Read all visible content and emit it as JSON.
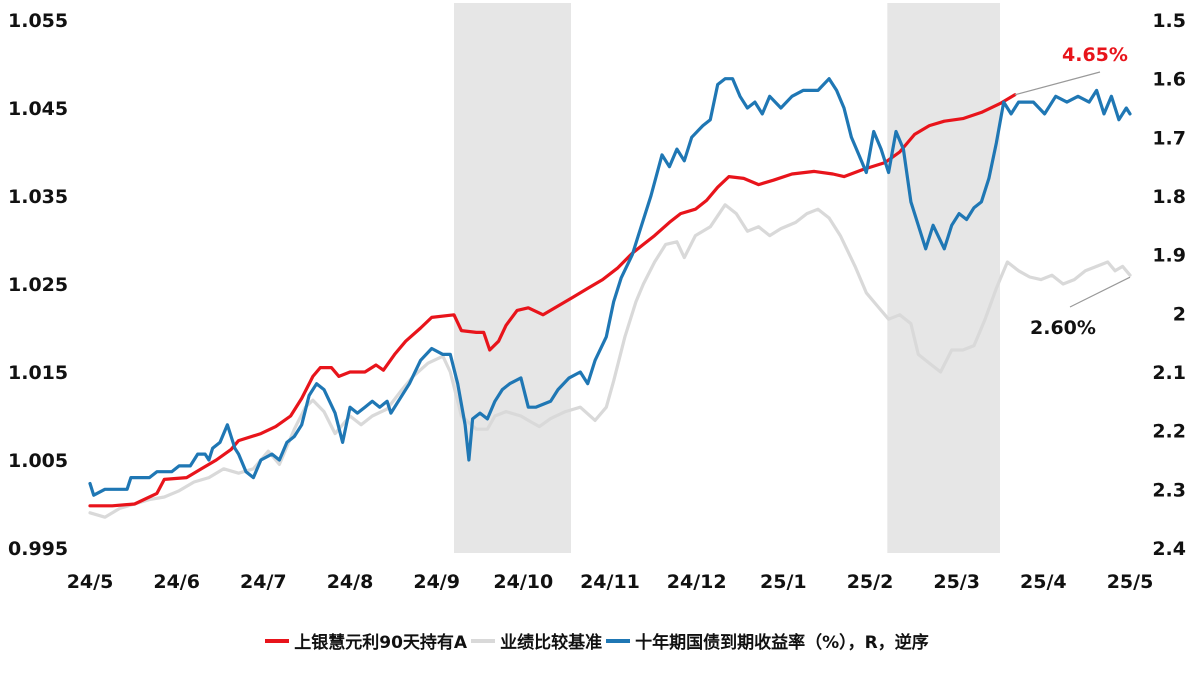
{
  "chart_data": {
    "type": "line",
    "x_categories": [
      "24/5",
      "24/6",
      "24/7",
      "24/8",
      "24/9",
      "24/10",
      "24/11",
      "24/12",
      "25/1",
      "25/2",
      "25/3",
      "25/4",
      "25/5"
    ],
    "y_left": {
      "ticks": [
        "1.055",
        "1.045",
        "1.035",
        "1.025",
        "1.015",
        "1.005",
        "0.995"
      ],
      "range": [
        0.995,
        1.055
      ]
    },
    "y_right": {
      "ticks": [
        "1.5",
        "1.6",
        "1.7",
        "1.8",
        "1.9",
        "2",
        "2.1",
        "2.2",
        "2.3",
        "2.4"
      ],
      "range": [
        1.5,
        2.4
      ],
      "reversed": true
    },
    "shaded_periods": [
      {
        "from": 4.2,
        "to": 5.55
      },
      {
        "from": 9.2,
        "to": 10.5
      }
    ],
    "series": [
      {
        "name": "上银慧元利90天持有A",
        "axis": "left",
        "color": "#e8141b",
        "points": [
          [
            0,
            0.9998
          ],
          [
            0.3,
            0.9998
          ],
          [
            0.6,
            1.0
          ],
          [
            0.9,
            1.0012
          ],
          [
            1.0,
            1.0028
          ],
          [
            1.3,
            1.003
          ],
          [
            1.5,
            1.004
          ],
          [
            1.7,
            1.005
          ],
          [
            1.9,
            1.0062
          ],
          [
            2.0,
            1.0072
          ],
          [
            2.3,
            1.008
          ],
          [
            2.5,
            1.0088
          ],
          [
            2.7,
            1.01
          ],
          [
            2.85,
            1.012
          ],
          [
            3.0,
            1.0145
          ],
          [
            3.1,
            1.0155
          ],
          [
            3.25,
            1.0155
          ],
          [
            3.35,
            1.0145
          ],
          [
            3.5,
            1.015
          ],
          [
            3.7,
            1.015
          ],
          [
            3.85,
            1.0158
          ],
          [
            3.95,
            1.0152
          ],
          [
            4.1,
            1.017
          ],
          [
            4.25,
            1.0185
          ],
          [
            4.45,
            1.02
          ],
          [
            4.6,
            1.0212
          ],
          [
            4.9,
            1.0215
          ],
          [
            5.0,
            1.0197
          ],
          [
            5.2,
            1.0195
          ],
          [
            5.3,
            1.0195
          ],
          [
            5.38,
            1.0175
          ],
          [
            5.5,
            1.0185
          ],
          [
            5.6,
            1.0203
          ],
          [
            5.75,
            1.022
          ],
          [
            5.9,
            1.0223
          ],
          [
            6.1,
            1.0215
          ],
          [
            6.3,
            1.0225
          ],
          [
            6.5,
            1.0235
          ],
          [
            6.7,
            1.0245
          ],
          [
            6.9,
            1.0255
          ],
          [
            7.1,
            1.0268
          ],
          [
            7.3,
            1.0285
          ],
          [
            7.45,
            1.0295
          ],
          [
            7.6,
            1.0305
          ],
          [
            7.8,
            1.032
          ],
          [
            7.95,
            1.033
          ],
          [
            8.15,
            1.0335
          ],
          [
            8.3,
            1.0345
          ],
          [
            8.45,
            1.036
          ],
          [
            8.6,
            1.0372
          ],
          [
            8.8,
            1.037
          ],
          [
            9.0,
            1.0363
          ],
          [
            9.2,
            1.0368
          ],
          [
            9.45,
            1.0375
          ],
          [
            9.75,
            1.0378
          ],
          [
            10.0,
            1.0375
          ],
          [
            10.15,
            1.0372
          ],
          [
            10.4,
            1.038
          ],
          [
            10.7,
            1.0388
          ],
          [
            10.9,
            1.04
          ],
          [
            11.1,
            1.042
          ],
          [
            11.3,
            1.043
          ],
          [
            11.5,
            1.0435
          ],
          [
            11.75,
            1.0438
          ],
          [
            12.0,
            1.0445
          ],
          [
            12.25,
            1.0455
          ],
          [
            12.45,
            1.0465
          ]
        ]
      },
      {
        "name": "业绩比较基准",
        "axis": "left",
        "color": "#d9d9d9",
        "points": [
          [
            0,
            0.999
          ],
          [
            0.2,
            0.9985
          ],
          [
            0.4,
            0.9995
          ],
          [
            0.6,
            1.0
          ],
          [
            0.8,
            1.0005
          ],
          [
            1.0,
            1.0008
          ],
          [
            1.2,
            1.0015
          ],
          [
            1.4,
            1.0025
          ],
          [
            1.6,
            1.003
          ],
          [
            1.8,
            1.004
          ],
          [
            2.0,
            1.0035
          ],
          [
            2.2,
            1.004
          ],
          [
            2.4,
            1.006
          ],
          [
            2.55,
            1.0045
          ],
          [
            2.75,
            1.0085
          ],
          [
            2.9,
            1.011
          ],
          [
            3.0,
            1.0118
          ],
          [
            3.15,
            1.0105
          ],
          [
            3.3,
            1.008
          ],
          [
            3.5,
            1.01
          ],
          [
            3.65,
            1.009
          ],
          [
            3.8,
            1.01
          ],
          [
            4.0,
            1.0108
          ],
          [
            4.2,
            1.013
          ],
          [
            4.35,
            1.0145
          ],
          [
            4.55,
            1.016
          ],
          [
            4.75,
            1.0168
          ],
          [
            4.85,
            1.015
          ],
          [
            5.0,
            1.01
          ],
          [
            5.2,
            1.0085
          ],
          [
            5.35,
            1.0085
          ],
          [
            5.45,
            1.01
          ],
          [
            5.6,
            1.0105
          ],
          [
            5.8,
            1.01
          ],
          [
            5.9,
            1.0095
          ],
          [
            6.05,
            1.0088
          ],
          [
            6.2,
            1.0097
          ],
          [
            6.4,
            1.0105
          ],
          [
            6.6,
            1.011
          ],
          [
            6.8,
            1.0095
          ],
          [
            6.95,
            1.011
          ],
          [
            7.05,
            1.014
          ],
          [
            7.2,
            1.019
          ],
          [
            7.35,
            1.023
          ],
          [
            7.45,
            1.025
          ],
          [
            7.6,
            1.0275
          ],
          [
            7.75,
            1.0295
          ],
          [
            7.9,
            1.0298
          ],
          [
            8.0,
            1.028
          ],
          [
            8.15,
            1.0305
          ],
          [
            8.35,
            1.0315
          ],
          [
            8.55,
            1.034
          ],
          [
            8.7,
            1.033
          ],
          [
            8.85,
            1.031
          ],
          [
            9.0,
            1.0315
          ],
          [
            9.15,
            1.0305
          ],
          [
            9.3,
            1.0313
          ],
          [
            9.5,
            1.032
          ],
          [
            9.65,
            1.033
          ],
          [
            9.8,
            1.0335
          ],
          [
            9.95,
            1.0325
          ],
          [
            10.1,
            1.0305
          ],
          [
            10.3,
            1.027
          ],
          [
            10.45,
            1.024
          ],
          [
            10.6,
            1.0225
          ],
          [
            10.75,
            1.021
          ],
          [
            10.9,
            1.0215
          ],
          [
            11.05,
            1.0205
          ],
          [
            11.15,
            1.017
          ],
          [
            11.3,
            1.016
          ],
          [
            11.45,
            1.015
          ],
          [
            11.6,
            1.0175
          ],
          [
            11.75,
            1.0175
          ],
          [
            11.9,
            1.018
          ],
          [
            12.05,
            1.021
          ],
          [
            12.2,
            1.0245
          ],
          [
            12.35,
            1.0275
          ],
          [
            12.5,
            1.0265
          ],
          [
            12.65,
            1.0258
          ],
          [
            12.8,
            1.0255
          ],
          [
            12.95,
            1.026
          ],
          [
            13.1,
            1.025
          ],
          [
            13.25,
            1.0255
          ],
          [
            13.4,
            1.0265
          ],
          [
            13.55,
            1.027
          ],
          [
            13.7,
            1.0275
          ],
          [
            13.8,
            1.0265
          ],
          [
            13.9,
            1.027
          ],
          [
            14.0,
            1.026
          ]
        ]
      },
      {
        "name": "十年期国债到期收益率（%），R，逆序",
        "axis": "right",
        "color": "#1f77b4",
        "points": [
          [
            0,
            2.29
          ],
          [
            0.05,
            2.31
          ],
          [
            0.2,
            2.3
          ],
          [
            0.5,
            2.3
          ],
          [
            0.55,
            2.28
          ],
          [
            0.8,
            2.28
          ],
          [
            0.9,
            2.27
          ],
          [
            1.1,
            2.27
          ],
          [
            1.2,
            2.26
          ],
          [
            1.35,
            2.26
          ],
          [
            1.45,
            2.24
          ],
          [
            1.55,
            2.24
          ],
          [
            1.6,
            2.25
          ],
          [
            1.65,
            2.23
          ],
          [
            1.75,
            2.22
          ],
          [
            1.85,
            2.19
          ],
          [
            1.95,
            2.23
          ],
          [
            2.0,
            2.24
          ],
          [
            2.1,
            2.27
          ],
          [
            2.2,
            2.28
          ],
          [
            2.3,
            2.25
          ],
          [
            2.45,
            2.24
          ],
          [
            2.55,
            2.25
          ],
          [
            2.65,
            2.22
          ],
          [
            2.75,
            2.21
          ],
          [
            2.85,
            2.19
          ],
          [
            2.95,
            2.14
          ],
          [
            3.05,
            2.12
          ],
          [
            3.15,
            2.13
          ],
          [
            3.3,
            2.17
          ],
          [
            3.4,
            2.22
          ],
          [
            3.5,
            2.16
          ],
          [
            3.6,
            2.17
          ],
          [
            3.7,
            2.16
          ],
          [
            3.8,
            2.15
          ],
          [
            3.9,
            2.16
          ],
          [
            4.0,
            2.15
          ],
          [
            4.05,
            2.17
          ],
          [
            4.15,
            2.15
          ],
          [
            4.3,
            2.12
          ],
          [
            4.45,
            2.08
          ],
          [
            4.6,
            2.06
          ],
          [
            4.75,
            2.07
          ],
          [
            4.85,
            2.07
          ],
          [
            4.95,
            2.12
          ],
          [
            5.05,
            2.19
          ],
          [
            5.1,
            2.25
          ],
          [
            5.15,
            2.18
          ],
          [
            5.25,
            2.17
          ],
          [
            5.35,
            2.18
          ],
          [
            5.45,
            2.15
          ],
          [
            5.55,
            2.13
          ],
          [
            5.65,
            2.12
          ],
          [
            5.8,
            2.11
          ],
          [
            5.9,
            2.16
          ],
          [
            6.0,
            2.16
          ],
          [
            6.2,
            2.15
          ],
          [
            6.3,
            2.13
          ],
          [
            6.45,
            2.11
          ],
          [
            6.6,
            2.1
          ],
          [
            6.7,
            2.12
          ],
          [
            6.8,
            2.08
          ],
          [
            6.95,
            2.04
          ],
          [
            7.05,
            1.98
          ],
          [
            7.15,
            1.94
          ],
          [
            7.3,
            1.9
          ],
          [
            7.4,
            1.86
          ],
          [
            7.55,
            1.8
          ],
          [
            7.7,
            1.73
          ],
          [
            7.8,
            1.75
          ],
          [
            7.9,
            1.72
          ],
          [
            8.0,
            1.74
          ],
          [
            8.1,
            1.7
          ],
          [
            8.25,
            1.68
          ],
          [
            8.35,
            1.67
          ],
          [
            8.45,
            1.61
          ],
          [
            8.55,
            1.6
          ],
          [
            8.65,
            1.6
          ],
          [
            8.75,
            1.63
          ],
          [
            8.85,
            1.65
          ],
          [
            8.95,
            1.64
          ],
          [
            9.05,
            1.66
          ],
          [
            9.15,
            1.63
          ],
          [
            9.3,
            1.65
          ],
          [
            9.45,
            1.63
          ],
          [
            9.6,
            1.62
          ],
          [
            9.8,
            1.62
          ],
          [
            9.95,
            1.6
          ],
          [
            10.05,
            1.62
          ],
          [
            10.15,
            1.65
          ],
          [
            10.25,
            1.7
          ],
          [
            10.35,
            1.73
          ],
          [
            10.45,
            1.76
          ],
          [
            10.55,
            1.69
          ],
          [
            10.65,
            1.72
          ],
          [
            10.75,
            1.76
          ],
          [
            10.85,
            1.69
          ],
          [
            10.95,
            1.72
          ],
          [
            11.05,
            1.81
          ],
          [
            11.15,
            1.85
          ],
          [
            11.25,
            1.89
          ],
          [
            11.35,
            1.85
          ],
          [
            11.5,
            1.89
          ],
          [
            11.6,
            1.85
          ],
          [
            11.7,
            1.83
          ],
          [
            11.8,
            1.84
          ],
          [
            11.9,
            1.82
          ],
          [
            12.0,
            1.81
          ],
          [
            12.1,
            1.77
          ],
          [
            12.2,
            1.71
          ],
          [
            12.3,
            1.64
          ],
          [
            12.4,
            1.66
          ],
          [
            12.5,
            1.64
          ],
          [
            12.7,
            1.64
          ],
          [
            12.85,
            1.66
          ],
          [
            13.0,
            1.63
          ],
          [
            13.15,
            1.64
          ],
          [
            13.3,
            1.63
          ],
          [
            13.45,
            1.64
          ],
          [
            13.55,
            1.62
          ],
          [
            13.65,
            1.66
          ],
          [
            13.75,
            1.63
          ],
          [
            13.85,
            1.67
          ],
          [
            13.95,
            1.65
          ],
          [
            14.0,
            1.66
          ]
        ]
      }
    ],
    "annotations": [
      {
        "text": "4.65%",
        "color": "#e8141b"
      },
      {
        "text": "2.60%",
        "color": "#111111"
      }
    ]
  },
  "legend": [
    {
      "label": "上银慧元利90天持有A",
      "color": "#e8141b"
    },
    {
      "label": "业绩比较基准",
      "color": "#d9d9d9"
    },
    {
      "label": "十年期国债到期收益率（%），R，逆序",
      "color": "#1f77b4"
    }
  ]
}
